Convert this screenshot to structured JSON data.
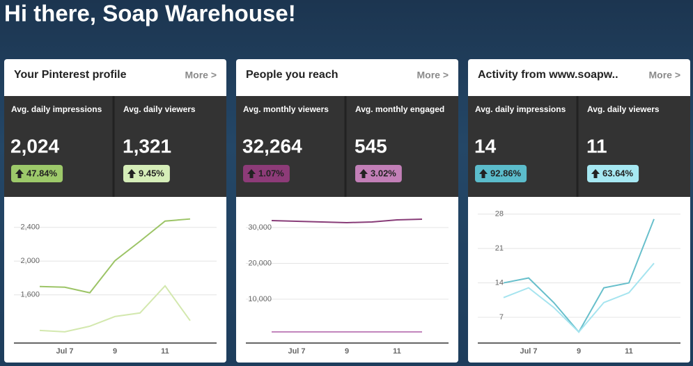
{
  "header": {
    "title": "Hi there, Soap Warehouse!"
  },
  "cards": [
    {
      "title": "Your Pinterest profile",
      "more": "More >",
      "stats": [
        {
          "label": "Avg. daily impressions",
          "value": "2,024",
          "change": "47.84%",
          "color": "#9dc96a"
        },
        {
          "label": "Avg. daily viewers",
          "value": "1,321",
          "change": "9.45%",
          "color": "#d5edb8"
        }
      ],
      "chart": {
        "type": "line",
        "categories": [
          null,
          "Jul 7",
          null,
          "9",
          null,
          "11",
          null
        ],
        "series": [
          {
            "color": "#9cc466",
            "values": [
              1699,
              1691,
              1625,
              2004,
              2235,
              2474,
              2499
            ]
          },
          {
            "color": "#d3e8ae",
            "values": [
              1179,
              1163,
              1229,
              1344,
              1386,
              1707,
              1295
            ]
          }
        ],
        "ylim": [
          1030,
          2620
        ],
        "yticks": [
          {
            "value": 1600,
            "label": "1,600"
          },
          {
            "value": 2000,
            "label": "2,000"
          },
          {
            "value": 2400,
            "label": "2,400"
          }
        ],
        "grid": true
      }
    },
    {
      "title": "People you reach",
      "more": "More >",
      "stats": [
        {
          "label": "Avg. monthly viewers",
          "value": "32,264",
          "change": "1.07%",
          "color": "#8d3b78"
        },
        {
          "label": "Avg. monthly engaged",
          "value": "545",
          "change": "3.02%",
          "color": "#c27fb7"
        }
      ],
      "chart": {
        "type": "line",
        "categories": [
          null,
          "Jul 7",
          null,
          "9",
          null,
          "11",
          null
        ],
        "series": [
          {
            "color": "#883c78",
            "values": [
              31940,
              31750,
              31550,
              31360,
              31550,
              32130,
              32330
            ]
          },
          {
            "color": "#c285bd",
            "values": [
              870,
              870,
              870,
              870,
              870,
              870,
              870
            ]
          }
        ],
        "ylim": [
          -2230,
          35240
        ],
        "yticks": [
          {
            "value": 10000,
            "label": "10,000"
          },
          {
            "value": 20000,
            "label": "20,000"
          },
          {
            "value": 30000,
            "label": "30,000"
          }
        ],
        "grid": true
      }
    },
    {
      "title": "Activity from www.soapw..",
      "more": "More >",
      "stats": [
        {
          "label": "Avg. daily impressions",
          "value": "14",
          "change": "92.86%",
          "color": "#5bbccb"
        },
        {
          "label": "Avg. daily viewers",
          "value": "11",
          "change": "63.64%",
          "color": "#a6e8f2"
        }
      ],
      "chart": {
        "type": "line",
        "categories": [
          null,
          "Jul 7",
          null,
          "9",
          null,
          "11",
          null
        ],
        "series": [
          {
            "color": "#67bfcb",
            "values": [
              14,
              15,
              10,
              4,
              13,
              14,
              27
            ]
          },
          {
            "color": "#a5e4ef",
            "values": [
              11,
              13,
              9,
              4,
              10,
              12,
              18
            ]
          }
        ],
        "ylim": [
          1.75,
          29.1
        ],
        "yticks": [
          7,
          14,
          21,
          28
        ],
        "grid": true
      }
    }
  ]
}
